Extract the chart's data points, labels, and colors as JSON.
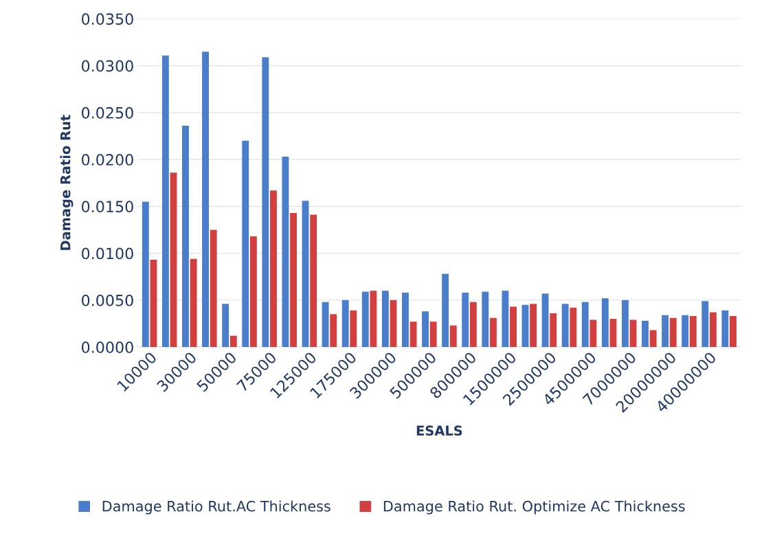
{
  "chart_data": {
    "type": "bar",
    "xlabel": "ESALS",
    "ylabel": "Damage Ratio Rut",
    "categories": [
      "10000",
      null,
      "30000",
      null,
      "50000",
      null,
      "75000",
      null,
      "125000",
      null,
      "175000",
      null,
      "300000",
      null,
      "500000",
      null,
      "800000",
      null,
      "1500000",
      null,
      "2500000",
      null,
      "4500000",
      null,
      "7000000",
      null,
      "20000000",
      null,
      "40000000",
      null
    ],
    "series": [
      {
        "name": "Damage Ratio Rut.AC Thickness",
        "color": "#4a7ecb",
        "values": [
          0.0155,
          0.0311,
          0.0236,
          0.0315,
          0.0046,
          0.022,
          0.0309,
          0.0203,
          0.0156,
          0.0048,
          0.005,
          0.0059,
          0.006,
          0.0058,
          0.0038,
          0.0078,
          0.0058,
          0.0059,
          0.006,
          0.0045,
          0.0057,
          0.0046,
          0.0048,
          0.0052,
          0.005,
          0.0028,
          0.0034,
          0.0034,
          0.0049,
          0.0039
        ]
      },
      {
        "name": "Damage Ratio Rut. Optimize AC Thickness",
        "color": "#d33f3f",
        "values": [
          0.0093,
          0.0186,
          0.0094,
          0.0125,
          0.0012,
          0.0118,
          0.0167,
          0.0143,
          0.0141,
          0.0035,
          0.0039,
          0.006,
          0.005,
          0.0027,
          0.0027,
          0.0023,
          0.0048,
          0.0031,
          0.0043,
          0.0046,
          0.0036,
          0.0042,
          0.0029,
          0.003,
          0.0029,
          0.0018,
          0.0031,
          0.0033,
          0.0037,
          0.0033
        ]
      }
    ],
    "ylim": [
      0,
      0.035
    ],
    "yticks": [
      {
        "value": 0,
        "label": "0.0000"
      },
      {
        "value": 0.005,
        "label": "0.0050"
      },
      {
        "value": 0.01,
        "label": "0.0100"
      },
      {
        "value": 0.015,
        "label": "0.0150"
      },
      {
        "value": 0.02,
        "label": "0.0200"
      },
      {
        "value": 0.025,
        "label": "0.0250"
      },
      {
        "value": 0.03,
        "label": "0.0300"
      },
      {
        "value": 0.035,
        "label": "0.0350"
      }
    ],
    "grid": "y",
    "legend": "bottom"
  }
}
